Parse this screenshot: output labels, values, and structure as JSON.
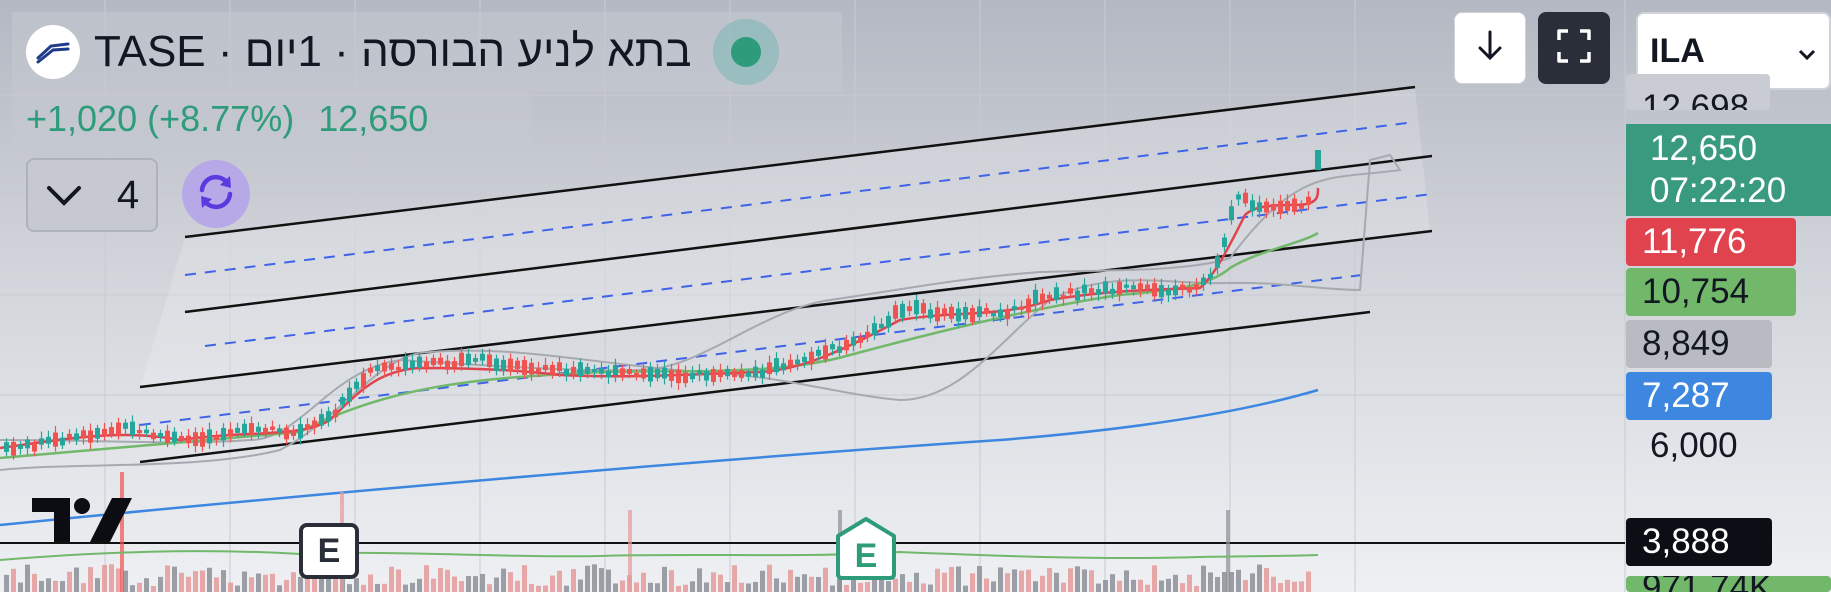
{
  "header": {
    "title": "בתא לניע הבורסה · 1יום · TASE",
    "change": "+1,020 (+8.77%)",
    "price": "12,650"
  },
  "indicators": {
    "collapsed_count": "4"
  },
  "toolbar": {
    "currency": "ILA"
  },
  "price_axis": {
    "partial_top": "12,698",
    "current_price": "12,650",
    "countdown": "07:22:20",
    "ma_red": "11,776",
    "ma_green": "10,754",
    "bb_gray": "8,849",
    "ma_blue": "7,287",
    "tick_6000": "6,000",
    "volume_value": "3,888",
    "volume_bottom": "971.74K"
  },
  "events": [
    {
      "label": "E"
    },
    {
      "label": "E"
    }
  ],
  "colors": {
    "up": "#26a69a",
    "down": "#ef5350",
    "ma_red": "#e0434d",
    "ma_green": "#72b86b",
    "ma_blue": "#3d87e0",
    "price_green": "#2e9c7a"
  },
  "icons": [
    "flag-logo-icon",
    "status-dot-icon",
    "chevron-down-icon",
    "refresh-icon",
    "download-icon",
    "fullscreen-icon",
    "tradingview-logo-icon"
  ]
}
